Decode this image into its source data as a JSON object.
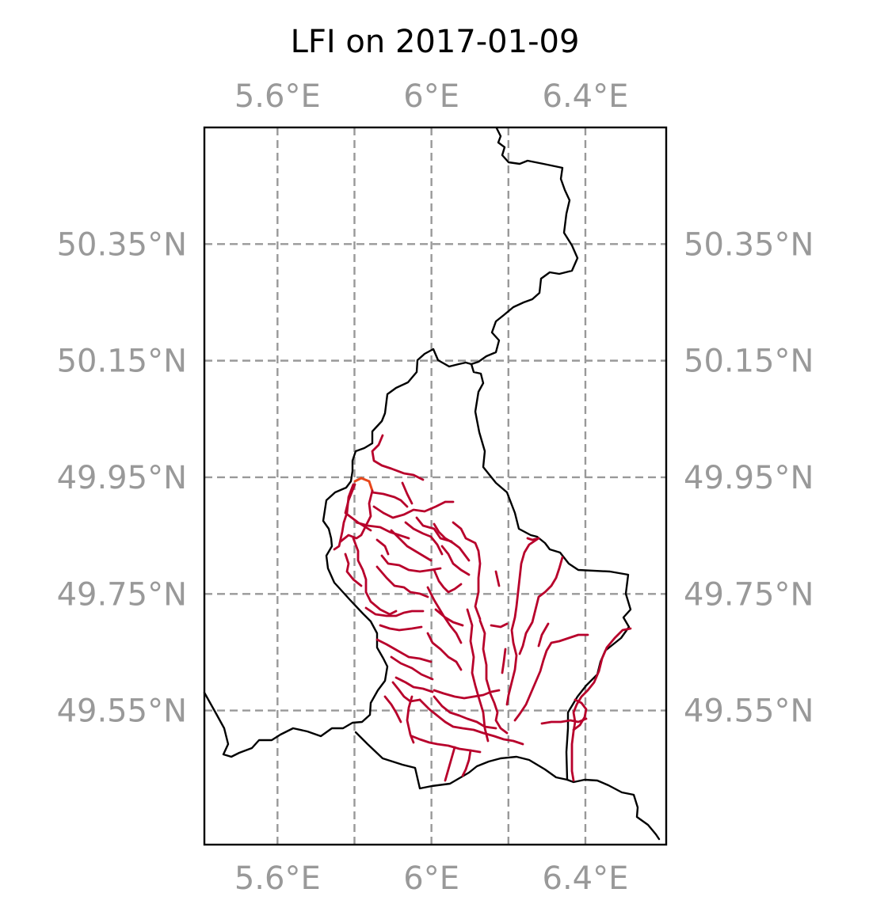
{
  "title": "LFI on 2017-01-09",
  "map": {
    "extent": {
      "lon": [
        5.41,
        6.61
      ],
      "lat": [
        49.32,
        50.55
      ]
    },
    "gridlines": true,
    "lon_ticks": [
      {
        "value": 5.6,
        "label": "5.6°E"
      },
      {
        "value": 6.0,
        "label": "6°E"
      },
      {
        "value": 6.4,
        "label": "6.4°E"
      }
    ],
    "lon_gridlines": [
      5.6,
      5.8,
      6.0,
      6.2,
      6.4
    ],
    "lat_ticks": [
      {
        "value": 50.35,
        "label": "50.35°N"
      },
      {
        "value": 50.15,
        "label": "50.15°N"
      },
      {
        "value": 49.95,
        "label": "49.95°N"
      },
      {
        "value": 49.75,
        "label": "49.75°N"
      },
      {
        "value": 49.55,
        "label": "49.55°N"
      }
    ],
    "colors": {
      "river": "#b8002b",
      "river_high": "#e8471b",
      "border": "#000000",
      "grid": "#999999"
    }
  }
}
